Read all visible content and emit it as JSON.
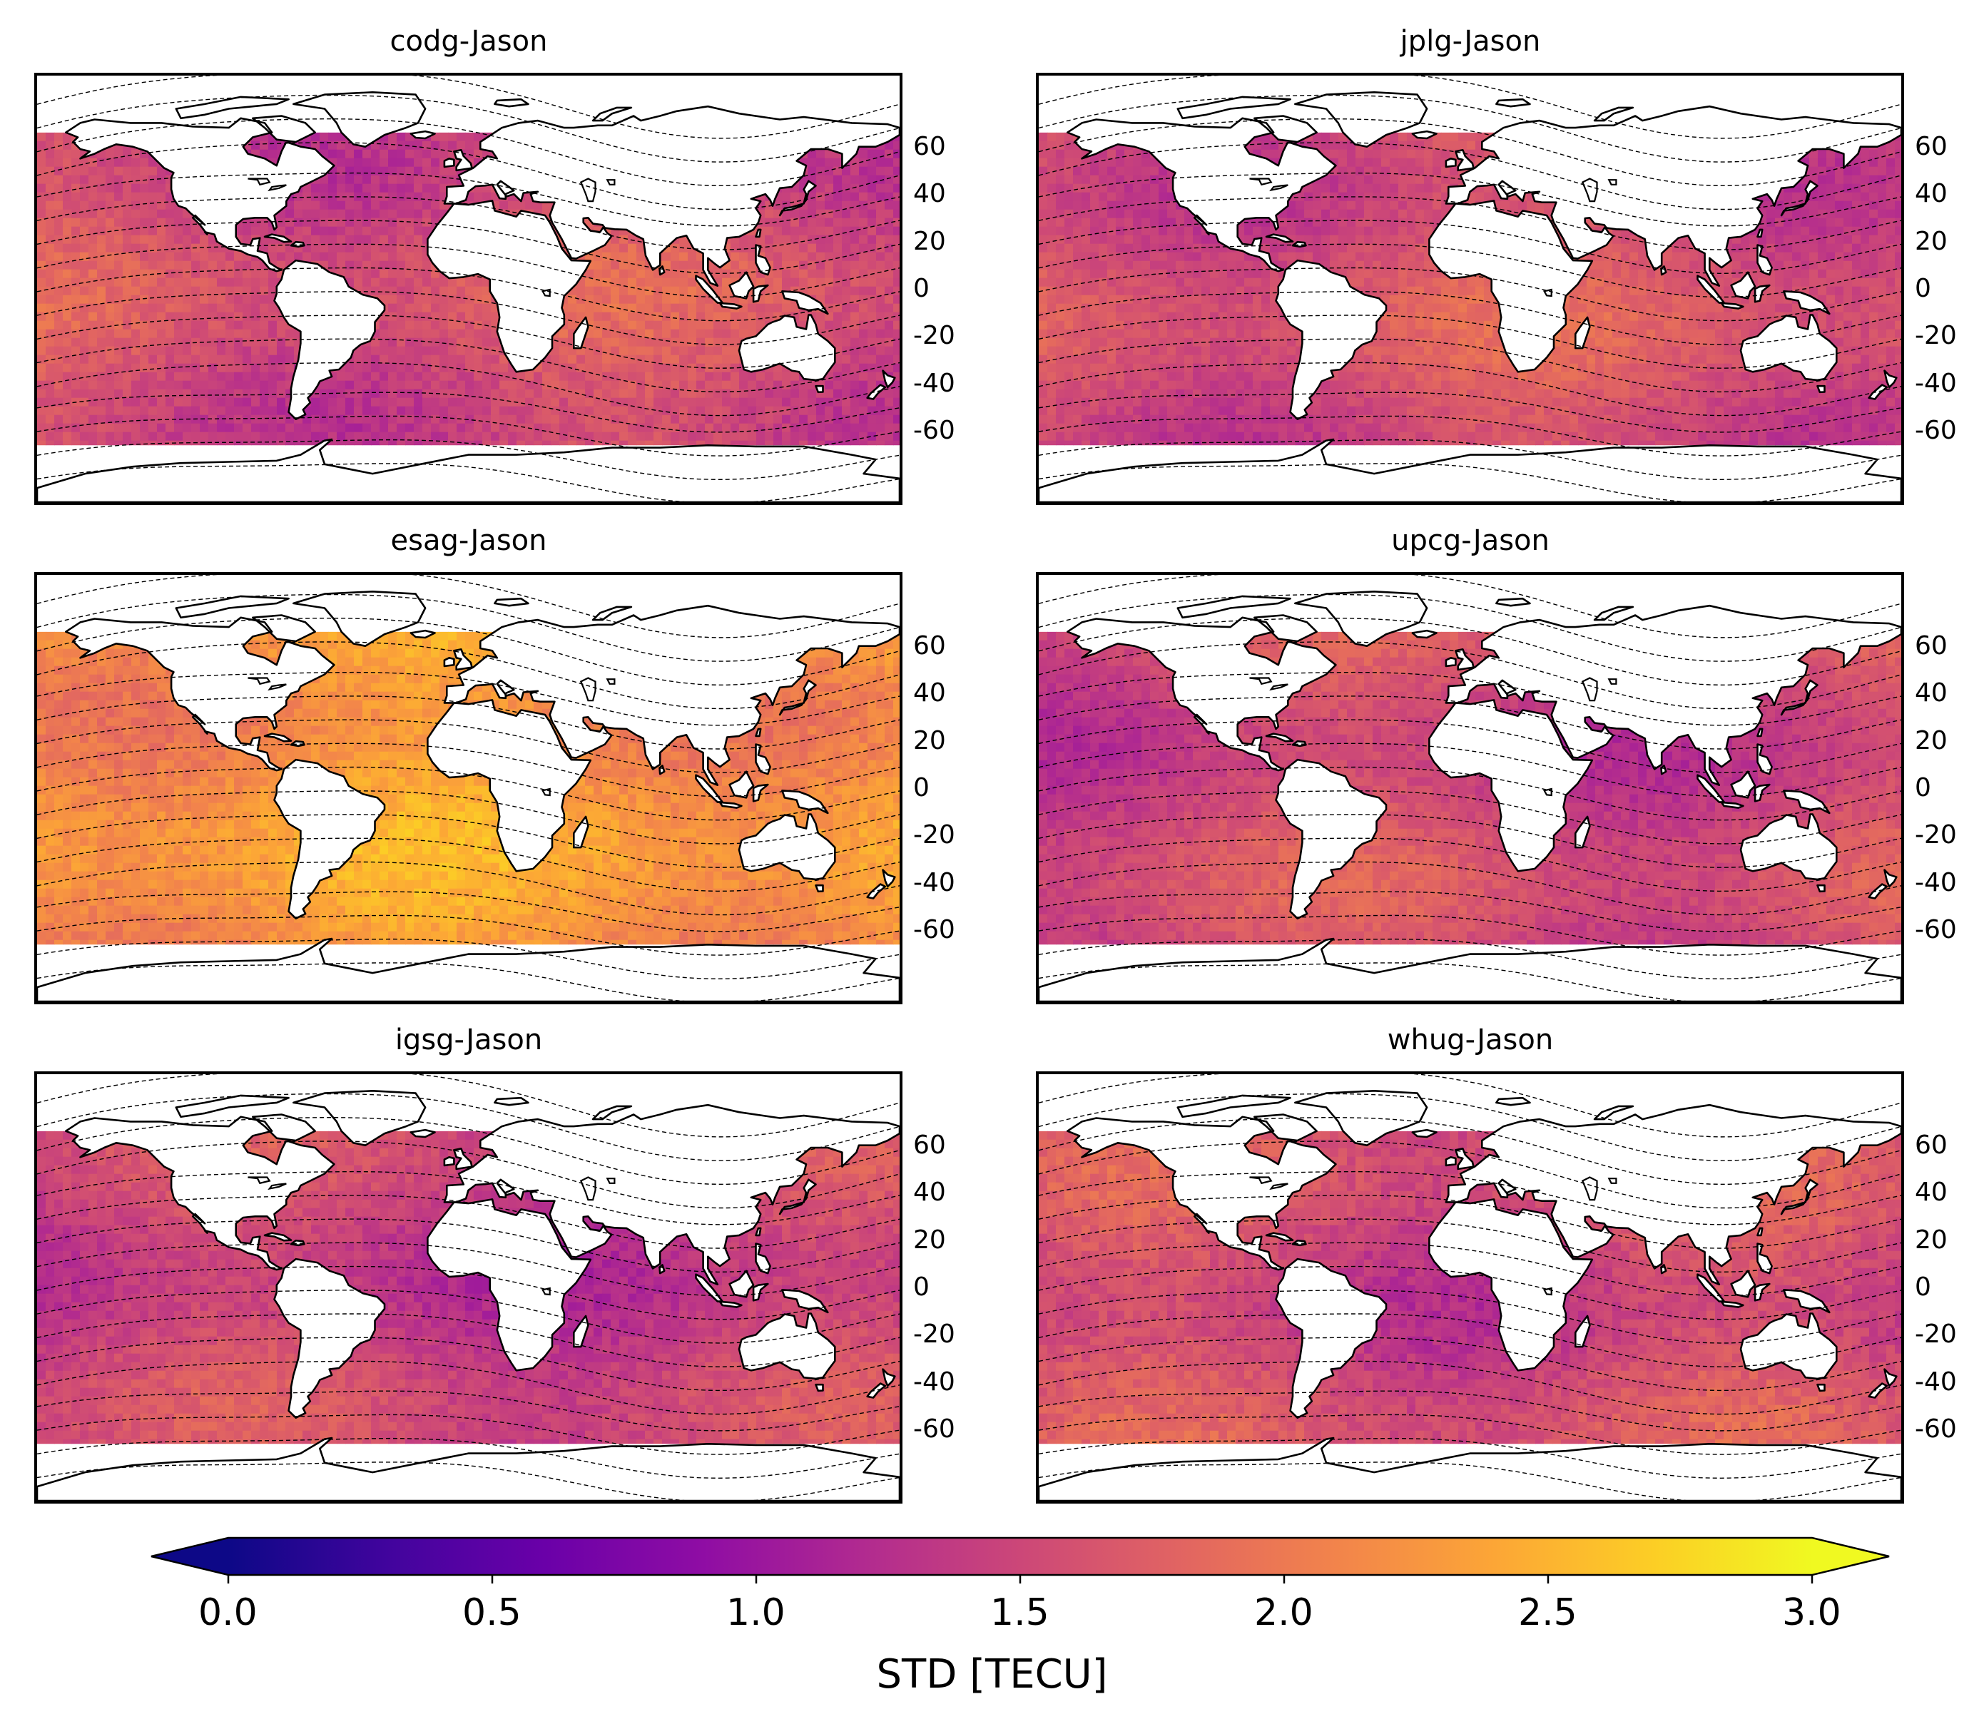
{
  "panels": [
    {
      "title": "codg-Jason",
      "mean_std": 1.58,
      "variation": 0.22
    },
    {
      "title": "jplg-Jason",
      "mean_std": 1.6,
      "variation": 0.18
    },
    {
      "title": "esag-Jason",
      "mean_std": 2.25,
      "variation": 0.22
    },
    {
      "title": "upcg-Jason",
      "mean_std": 1.52,
      "variation": 0.18
    },
    {
      "title": "igsg-Jason",
      "mean_std": 1.45,
      "variation": 0.2
    },
    {
      "title": "whug-Jason",
      "mean_std": 1.55,
      "variation": 0.22
    }
  ],
  "latitude_ticks": [
    "60",
    "40",
    "20",
    "0",
    "-20",
    "-40",
    "-60"
  ],
  "colorbar": {
    "label": "STD [TECU]",
    "min": 0.0,
    "max": 3.0,
    "extend": "both",
    "colormap": "plasma",
    "ticks": [
      "0.0",
      "0.5",
      "1.0",
      "1.5",
      "2.0",
      "2.5",
      "3.0"
    ]
  },
  "colors": {
    "land": "#ffffff",
    "coastline": "#000000",
    "magnetic_isolines": "#000000"
  }
}
